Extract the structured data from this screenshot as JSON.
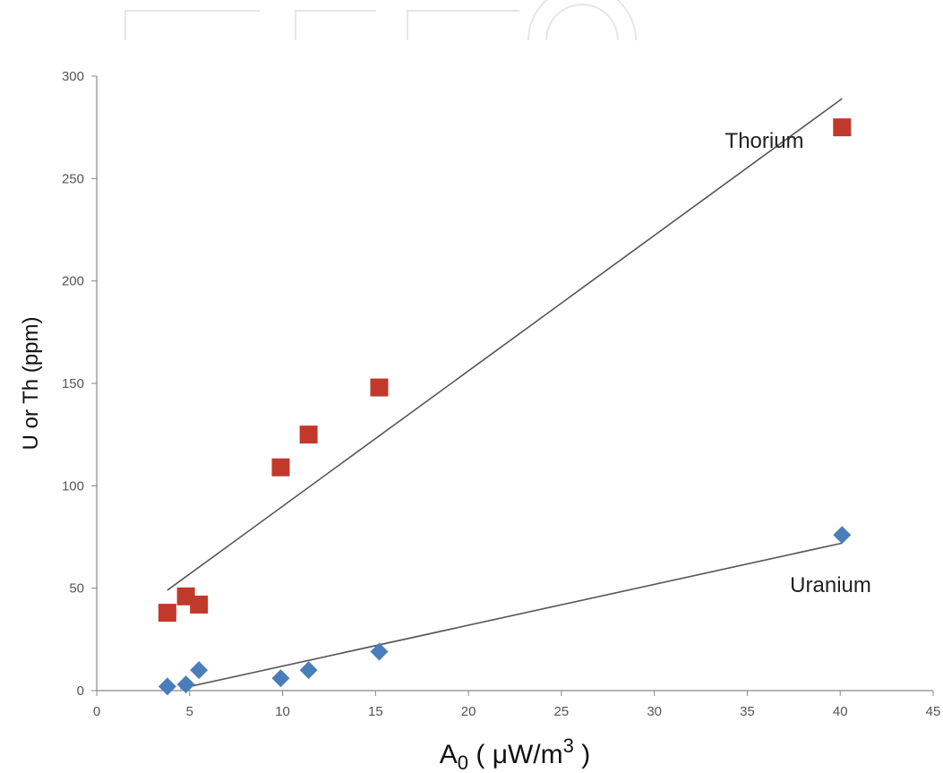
{
  "chart_data": {
    "type": "scatter",
    "title": "",
    "xlabel": "A",
    "xlabel_subscript": "0",
    "xlabel_units": " ( μW/m",
    "xlabel_superscript": "3",
    "xlabel_close": " )",
    "ylabel": "U or Th (ppm)",
    "xlim": [
      0,
      45
    ],
    "ylim": [
      0,
      300
    ],
    "x_ticks": [
      0,
      5,
      10,
      15,
      20,
      25,
      30,
      35,
      40,
      45
    ],
    "y_ticks": [
      0,
      50,
      100,
      150,
      200,
      250,
      300
    ],
    "grid": false,
    "legend": "none",
    "series": [
      {
        "name": "Thorium",
        "marker": "square",
        "color": "#c0392b",
        "points": [
          {
            "x": 3.8,
            "y": 38
          },
          {
            "x": 4.8,
            "y": 46
          },
          {
            "x": 5.5,
            "y": 42
          },
          {
            "x": 9.9,
            "y": 109
          },
          {
            "x": 11.4,
            "y": 125
          },
          {
            "x": 15.2,
            "y": 148
          },
          {
            "x": 40.1,
            "y": 275
          }
        ],
        "trendline": {
          "x": [
            3.8,
            40.1
          ],
          "y": [
            49,
            289
          ]
        }
      },
      {
        "name": "Uranium",
        "marker": "diamond",
        "color": "#4a7ebb",
        "points": [
          {
            "x": 3.8,
            "y": 2
          },
          {
            "x": 4.8,
            "y": 3
          },
          {
            "x": 5.5,
            "y": 10
          },
          {
            "x": 9.9,
            "y": 6
          },
          {
            "x": 11.4,
            "y": 10
          },
          {
            "x": 15.2,
            "y": 19
          },
          {
            "x": 40.1,
            "y": 76
          }
        ],
        "trendline": {
          "x": [
            4.5,
            40.1
          ],
          "y": [
            1,
            72
          ]
        }
      }
    ],
    "annotations": [
      {
        "text": "Thorium",
        "x": 33.8,
        "y": 265
      },
      {
        "text": "Uranium",
        "x": 37.3,
        "y": 48
      }
    ]
  }
}
